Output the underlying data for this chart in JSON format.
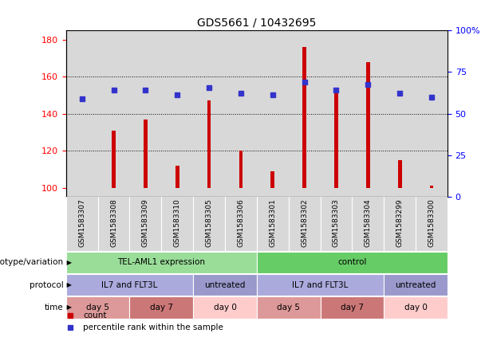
{
  "title": "GDS5661 / 10432695",
  "samples": [
    "GSM1583307",
    "GSM1583308",
    "GSM1583309",
    "GSM1583310",
    "GSM1583305",
    "GSM1583306",
    "GSM1583301",
    "GSM1583302",
    "GSM1583303",
    "GSM1583304",
    "GSM1583299",
    "GSM1583300"
  ],
  "counts": [
    100,
    131,
    137,
    112,
    147,
    120,
    109,
    176,
    152,
    168,
    115,
    101
  ],
  "percentiles_left_scale": [
    148,
    153,
    153,
    150,
    154,
    151,
    150,
    157,
    153,
    156,
    151,
    149
  ],
  "ylim_left": [
    95,
    185
  ],
  "ylim_right": [
    0,
    100
  ],
  "yticks_left": [
    100,
    120,
    140,
    160,
    180
  ],
  "yticks_right": [
    0,
    25,
    50,
    75,
    100
  ],
  "ytick_right_labels": [
    "0",
    "25",
    "50",
    "75",
    "100%"
  ],
  "bar_color": "#cc0000",
  "dot_color": "#3333cc",
  "bar_width": 0.12,
  "annotation_rows": [
    {
      "label": "genotype/variation",
      "groups": [
        {
          "text": "TEL-AML1 expression",
          "span": [
            0,
            5
          ],
          "color": "#99dd99"
        },
        {
          "text": "control",
          "span": [
            6,
            11
          ],
          "color": "#66cc66"
        }
      ]
    },
    {
      "label": "protocol",
      "groups": [
        {
          "text": "IL7 and FLT3L",
          "span": [
            0,
            3
          ],
          "color": "#aaaadd"
        },
        {
          "text": "untreated",
          "span": [
            4,
            5
          ],
          "color": "#9999cc"
        },
        {
          "text": "IL7 and FLT3L",
          "span": [
            6,
            9
          ],
          "color": "#aaaadd"
        },
        {
          "text": "untreated",
          "span": [
            10,
            11
          ],
          "color": "#9999cc"
        }
      ]
    },
    {
      "label": "time",
      "groups": [
        {
          "text": "day 5",
          "span": [
            0,
            1
          ],
          "color": "#dd9999"
        },
        {
          "text": "day 7",
          "span": [
            2,
            3
          ],
          "color": "#cc7777"
        },
        {
          "text": "day 0",
          "span": [
            4,
            5
          ],
          "color": "#ffcccc"
        },
        {
          "text": "day 5",
          "span": [
            6,
            7
          ],
          "color": "#dd9999"
        },
        {
          "text": "day 7",
          "span": [
            8,
            9
          ],
          "color": "#cc7777"
        },
        {
          "text": "day 0",
          "span": [
            10,
            11
          ],
          "color": "#ffcccc"
        }
      ]
    }
  ],
  "legend_items": [
    {
      "label": "count",
      "color": "#cc0000"
    },
    {
      "label": "percentile rank within the sample",
      "color": "#3333cc"
    }
  ],
  "col_bg_color": "#d8d8d8",
  "plot_bg_color": "#ffffff",
  "grid_yticks": [
    120,
    140,
    160
  ]
}
